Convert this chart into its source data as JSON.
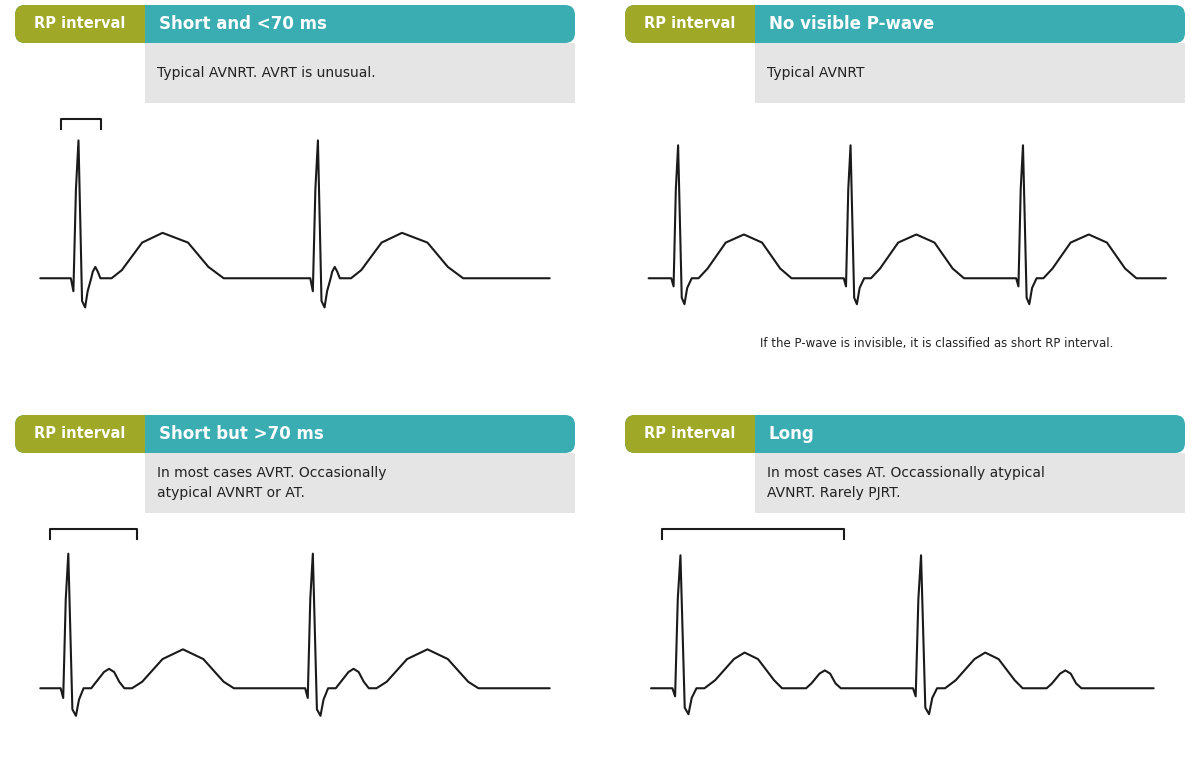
{
  "bg_color": "#ffffff",
  "olive_color": "#9fa827",
  "teal_color": "#3aadb2",
  "gray_bg": "#e5e5e5",
  "text_dark": "#222222",
  "text_white": "#ffffff",
  "label_left": "RP interval",
  "panels": [
    {
      "id": "TL",
      "title": "Short and <70 ms",
      "desc": "Typical AVNRT. AVRT is unusual.",
      "note": "",
      "bracket": "short",
      "ecg_type": "short_small"
    },
    {
      "id": "TR",
      "title": "No visible P-wave",
      "desc": "Typical AVNRT",
      "note": "If the P-wave is invisible, it is classified as short RP interval.",
      "bracket": "none",
      "ecg_type": "no_p"
    },
    {
      "id": "BL",
      "title": "Short but >70 ms",
      "desc": "In most cases AVRT. Occasionally\natypical AVNRT or AT.",
      "note": "",
      "bracket": "medium",
      "ecg_type": "short_medium"
    },
    {
      "id": "BR",
      "title": "Long",
      "desc": "In most cases AT. Occassionally atypical\nAVNRT. Rarely PJRT.",
      "note": "",
      "bracket": "long",
      "ecg_type": "long_rp"
    }
  ]
}
